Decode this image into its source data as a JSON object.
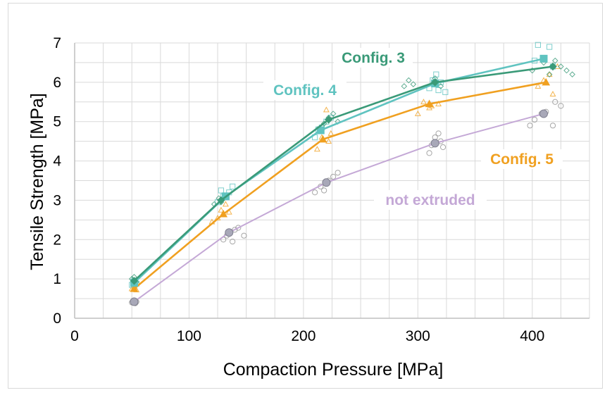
{
  "chart_data": {
    "type": "scatter",
    "xlabel": "Compaction Pressure [MPa]",
    "ylabel": "Tensile Strength [MPa]",
    "xlim": [
      0,
      450
    ],
    "ylim": [
      0,
      7
    ],
    "x_ticks": [
      "0",
      "100",
      "200",
      "300",
      "400"
    ],
    "y_ticks": [
      "0",
      "1",
      "2",
      "3",
      "4",
      "5",
      "6",
      "7"
    ],
    "grid": true,
    "series": [
      {
        "name": "not extruded",
        "color": "#c4a8d6",
        "marker": "circle",
        "mean_x": [
          52,
          135,
          220,
          315,
          410
        ],
        "mean_y": [
          0.42,
          2.18,
          3.45,
          4.45,
          5.2
        ],
        "points": [
          [
            50,
            0.4
          ],
          [
            52,
            0.45
          ],
          [
            54,
            0.42
          ],
          [
            53,
            0.38
          ],
          [
            130,
            2.0
          ],
          [
            133,
            2.1
          ],
          [
            136,
            2.2
          ],
          [
            138,
            1.95
          ],
          [
            140,
            2.25
          ],
          [
            143,
            2.3
          ],
          [
            148,
            2.1
          ],
          [
            210,
            3.2
          ],
          [
            215,
            3.35
          ],
          [
            218,
            3.25
          ],
          [
            222,
            3.5
          ],
          [
            226,
            3.6
          ],
          [
            230,
            3.7
          ],
          [
            310,
            4.2
          ],
          [
            312,
            4.4
          ],
          [
            315,
            4.6
          ],
          [
            318,
            4.7
          ],
          [
            320,
            4.5
          ],
          [
            322,
            4.35
          ],
          [
            398,
            4.9
          ],
          [
            402,
            5.05
          ],
          [
            408,
            5.2
          ],
          [
            412,
            5.25
          ],
          [
            418,
            4.9
          ],
          [
            420,
            5.5
          ],
          [
            425,
            5.4
          ]
        ]
      },
      {
        "name": "Config. 5",
        "color": "#f0a020",
        "marker": "triangle",
        "mean_x": [
          52,
          130,
          217,
          310,
          412
        ],
        "mean_y": [
          0.75,
          2.65,
          4.55,
          5.45,
          6.0
        ],
        "points": [
          [
            50,
            0.75
          ],
          [
            52,
            0.8
          ],
          [
            54,
            0.72
          ],
          [
            120,
            2.45
          ],
          [
            125,
            2.55
          ],
          [
            128,
            2.75
          ],
          [
            132,
            2.9
          ],
          [
            135,
            2.7
          ],
          [
            212,
            4.3
          ],
          [
            216,
            4.6
          ],
          [
            220,
            5.3
          ],
          [
            222,
            4.5
          ],
          [
            224,
            4.7
          ],
          [
            300,
            5.2
          ],
          [
            305,
            5.5
          ],
          [
            310,
            5.35
          ],
          [
            312,
            5.4
          ],
          [
            318,
            5.45
          ],
          [
            405,
            5.9
          ],
          [
            410,
            6.05
          ],
          [
            415,
            6.2
          ],
          [
            418,
            5.7
          ],
          [
            422,
            6.4
          ]
        ]
      },
      {
        "name": "Config. 4",
        "color": "#5fc3c0",
        "marker": "square",
        "mean_x": [
          52,
          132,
          215,
          315,
          410
        ],
        "mean_y": [
          0.9,
          3.1,
          4.78,
          5.97,
          6.6
        ],
        "points": [
          [
            50,
            0.85
          ],
          [
            52,
            0.95
          ],
          [
            54,
            0.88
          ],
          [
            125,
            2.95
          ],
          [
            128,
            3.25
          ],
          [
            130,
            3.1
          ],
          [
            135,
            3.2
          ],
          [
            138,
            3.35
          ],
          [
            210,
            4.6
          ],
          [
            213,
            4.8
          ],
          [
            216,
            4.85
          ],
          [
            220,
            5.0
          ],
          [
            224,
            5.1
          ],
          [
            310,
            5.85
          ],
          [
            313,
            6.05
          ],
          [
            316,
            6.2
          ],
          [
            318,
            5.8
          ],
          [
            320,
            6.0
          ],
          [
            324,
            5.75
          ],
          [
            402,
            6.55
          ],
          [
            405,
            6.95
          ],
          [
            410,
            6.6
          ],
          [
            415,
            6.9
          ],
          [
            418,
            6.4
          ]
        ]
      },
      {
        "name": "Config. 3",
        "color": "#3a9a78",
        "marker": "diamond",
        "mean_x": [
          52,
          128,
          222,
          315,
          418
        ],
        "mean_y": [
          0.95,
          3.0,
          5.05,
          6.0,
          6.4
        ],
        "points": [
          [
            50,
            1.0
          ],
          [
            52,
            1.05
          ],
          [
            54,
            0.92
          ],
          [
            122,
            2.9
          ],
          [
            126,
            3.05
          ],
          [
            128,
            2.95
          ],
          [
            132,
            3.1
          ],
          [
            218,
            4.95
          ],
          [
            222,
            5.1
          ],
          [
            226,
            5.2
          ],
          [
            230,
            5.0
          ],
          [
            288,
            5.9
          ],
          [
            292,
            6.05
          ],
          [
            296,
            5.95
          ],
          [
            315,
            6.1
          ],
          [
            320,
            5.9
          ],
          [
            400,
            6.3
          ],
          [
            410,
            6.5
          ],
          [
            415,
            6.2
          ],
          [
            420,
            6.55
          ],
          [
            425,
            6.4
          ],
          [
            430,
            6.3
          ],
          [
            435,
            6.2
          ]
        ]
      }
    ],
    "annotations": [
      {
        "text": "Config. 3",
        "color": "#3a9a78"
      },
      {
        "text": "Config. 4",
        "color": "#5fc3c0"
      },
      {
        "text": "Config. 5",
        "color": "#f0a020"
      },
      {
        "text": "not extruded",
        "color": "#c4a8d6"
      }
    ]
  }
}
